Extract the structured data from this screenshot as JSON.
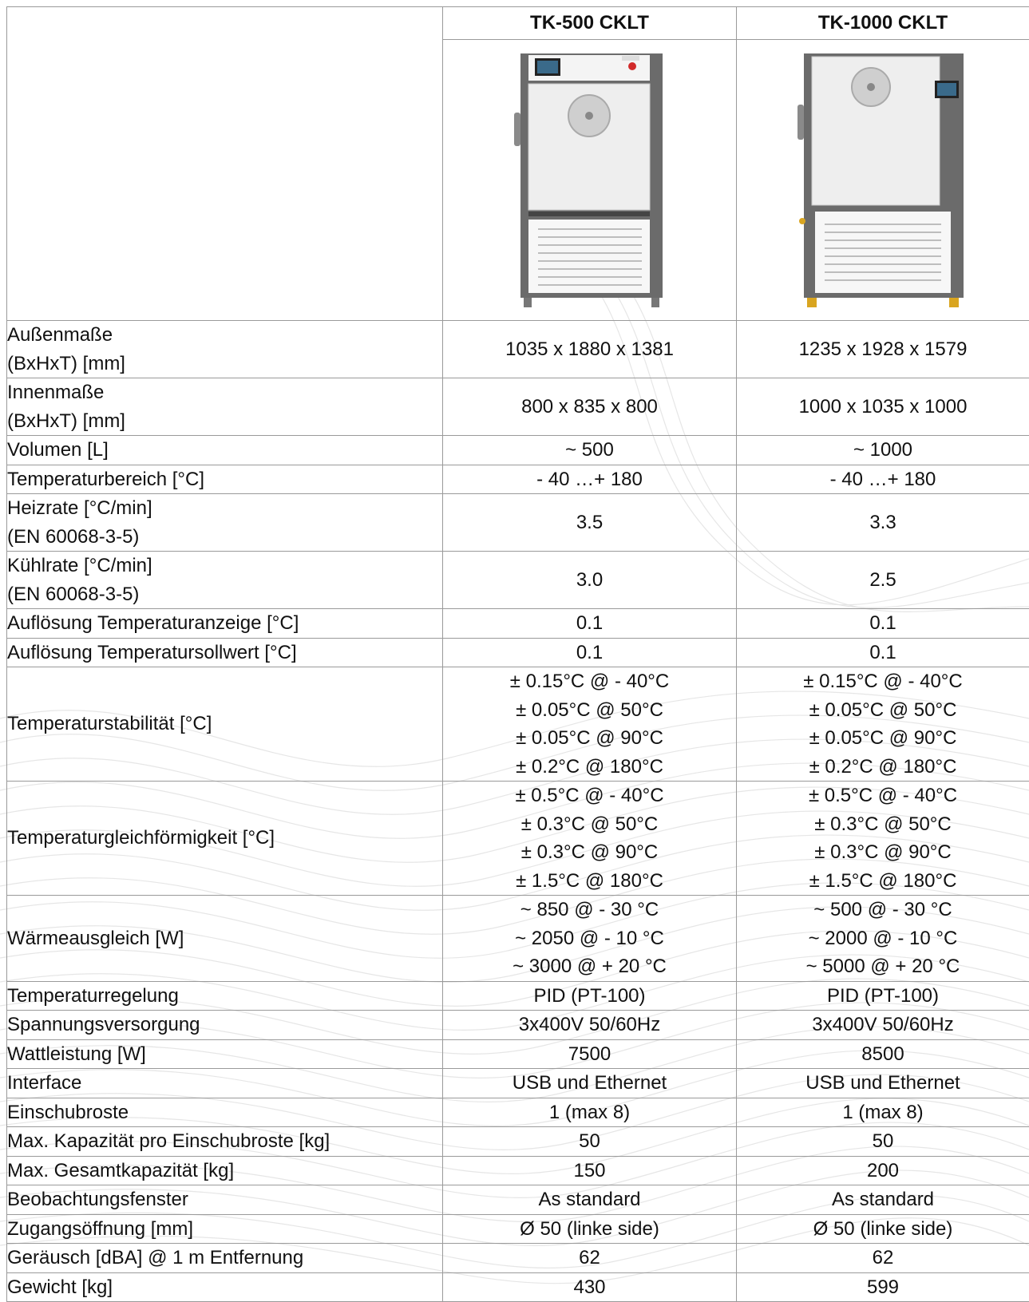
{
  "models": [
    "TK-500 CKLT",
    "TK-1000 CKLT"
  ],
  "product_images": [
    "climate-chamber-500-icon",
    "climate-chamber-1000-icon"
  ],
  "rows": [
    {
      "label": [
        "Außenmaße",
        "(BxHxT) [mm]"
      ],
      "values": [
        [
          "1035 x 1880 x 1381"
        ],
        [
          "1235 x 1928 x 1579"
        ]
      ]
    },
    {
      "label": [
        "Innenmaße",
        "(BxHxT) [mm]"
      ],
      "values": [
        [
          "800 x 835 x 800"
        ],
        [
          "1000 x 1035 x 1000"
        ]
      ]
    },
    {
      "label": [
        "Volumen [L]"
      ],
      "values": [
        [
          "~ 500"
        ],
        [
          "~ 1000"
        ]
      ]
    },
    {
      "label": [
        "Temperaturbereich [°C]"
      ],
      "values": [
        [
          "- 40 …+ 180"
        ],
        [
          "- 40 …+ 180"
        ]
      ]
    },
    {
      "label": [
        "Heizrate [°C/min]",
        "(EN 60068-3-5)"
      ],
      "values": [
        [
          "3.5"
        ],
        [
          "3.3"
        ]
      ]
    },
    {
      "label": [
        "Kühlrate [°C/min]",
        "(EN 60068-3-5)"
      ],
      "values": [
        [
          "3.0"
        ],
        [
          "2.5"
        ]
      ]
    },
    {
      "label": [
        "Auflösung Temperaturanzeige [°C]"
      ],
      "values": [
        [
          "0.1"
        ],
        [
          "0.1"
        ]
      ]
    },
    {
      "label": [
        "Auflösung Temperatursollwert  [°C]"
      ],
      "values": [
        [
          "0.1"
        ],
        [
          "0.1"
        ]
      ]
    },
    {
      "label": [
        "Temperaturstabilität [°C]"
      ],
      "values": [
        [
          "± 0.15°C @ - 40°C",
          "± 0.05°C @ 50°C",
          "± 0.05°C @ 90°C",
          "± 0.2°C @ 180°C"
        ],
        [
          "± 0.15°C @ - 40°C",
          "± 0.05°C @ 50°C",
          "± 0.05°C @ 90°C",
          "± 0.2°C @ 180°C"
        ]
      ]
    },
    {
      "label": [
        "Temperaturgleichförmigkeit [°C]"
      ],
      "values": [
        [
          "± 0.5°C @ - 40°C",
          "± 0.3°C @ 50°C",
          "± 0.3°C @ 90°C",
          "± 1.5°C @ 180°C"
        ],
        [
          "± 0.5°C @ - 40°C",
          "± 0.3°C @ 50°C",
          "± 0.3°C @ 90°C",
          "± 1.5°C @ 180°C"
        ]
      ]
    },
    {
      "label": [
        "Wärmeausgleich [W]"
      ],
      "values": [
        [
          "~ 850  @  - 30 °C",
          "~ 2050  @  - 10 °C",
          "~ 3000  @  + 20 °C"
        ],
        [
          "~ 500  @  - 30 °C",
          "~ 2000  @  - 10 °C",
          "~ 5000  @  + 20 °C"
        ]
      ]
    },
    {
      "label": [
        "Temperaturregelung"
      ],
      "values": [
        [
          "PID (PT-100)"
        ],
        [
          "PID (PT-100)"
        ]
      ]
    },
    {
      "label": [
        "Spannungsversorgung"
      ],
      "values": [
        [
          "3x400V 50/60Hz"
        ],
        [
          "3x400V 50/60Hz"
        ]
      ]
    },
    {
      "label": [
        "Wattleistung [W]"
      ],
      "values": [
        [
          "7500"
        ],
        [
          "8500"
        ]
      ]
    },
    {
      "label": [
        "Interface"
      ],
      "values": [
        [
          "USB und Ethernet"
        ],
        [
          "USB und Ethernet"
        ]
      ]
    },
    {
      "label": [
        "Einschubroste"
      ],
      "values": [
        [
          "1 (max 8)"
        ],
        [
          "1 (max 8)"
        ]
      ]
    },
    {
      "label": [
        "Max. Kapazität pro Einschubroste [kg]"
      ],
      "values": [
        [
          "50"
        ],
        [
          "50"
        ]
      ]
    },
    {
      "label": [
        "Max. Gesamtkapazität [kg]"
      ],
      "values": [
        [
          "150"
        ],
        [
          "200"
        ]
      ]
    },
    {
      "label": [
        "Beobachtungsfenster"
      ],
      "values": [
        [
          "As standard"
        ],
        [
          "As standard"
        ]
      ]
    },
    {
      "label": [
        "Zugangsöffnung [mm]"
      ],
      "values": [
        [
          "Ø 50 (linke side)"
        ],
        [
          "Ø 50 (linke side)"
        ]
      ]
    },
    {
      "label": [
        "Geräusch [dBA] @ 1 m Entfernung"
      ],
      "values": [
        [
          "62"
        ],
        [
          "62"
        ]
      ]
    },
    {
      "label": [
        "Gewicht [kg]"
      ],
      "values": [
        [
          "430"
        ],
        [
          "599"
        ]
      ]
    }
  ]
}
